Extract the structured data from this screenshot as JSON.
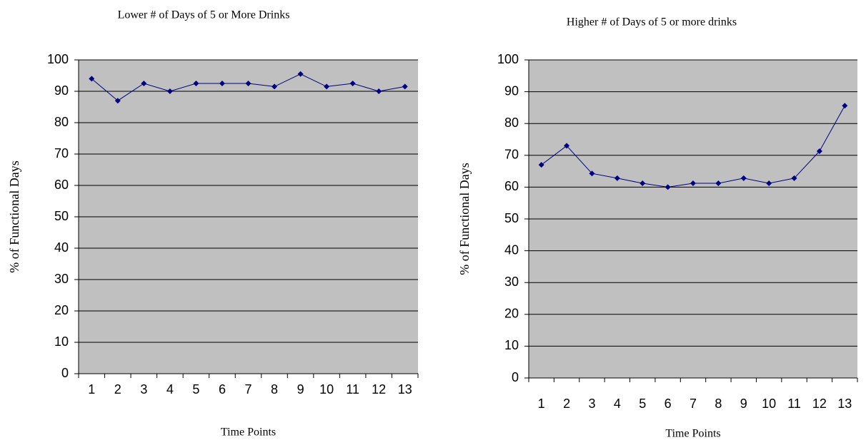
{
  "chart_data": [
    {
      "type": "line",
      "title": "Lower # of Days of 5 or More Drinks",
      "x_label": "Time Points",
      "y_label": "% of Functional Days",
      "categories": [
        1,
        2,
        3,
        4,
        5,
        6,
        7,
        8,
        9,
        10,
        11,
        12,
        13
      ],
      "values": [
        94,
        87,
        92.5,
        90,
        92.5,
        92.5,
        92.5,
        91.5,
        95.5,
        91.5,
        92.5,
        90,
        91.5
      ],
      "color": "#000080",
      "ylim": [
        0,
        100
      ],
      "yticks": [
        0,
        10,
        20,
        30,
        40,
        50,
        60,
        70,
        80,
        90,
        100
      ],
      "grid": true
    },
    {
      "type": "line",
      "title": "Higher # of Days of 5 or more drinks",
      "x_label": "Time Points",
      "y_label": "% of Functional Days",
      "categories": [
        1,
        2,
        3,
        4,
        5,
        6,
        7,
        8,
        9,
        10,
        11,
        12,
        13
      ],
      "values": [
        67,
        73,
        64.3,
        62.8,
        61.2,
        60,
        61.2,
        61.2,
        62.8,
        61.2,
        62.8,
        71.3,
        85.6
      ],
      "color": "#000080",
      "ylim": [
        0,
        100
      ],
      "yticks": [
        0,
        10,
        20,
        30,
        40,
        50,
        60,
        70,
        80,
        90,
        100
      ],
      "grid": true
    }
  ]
}
